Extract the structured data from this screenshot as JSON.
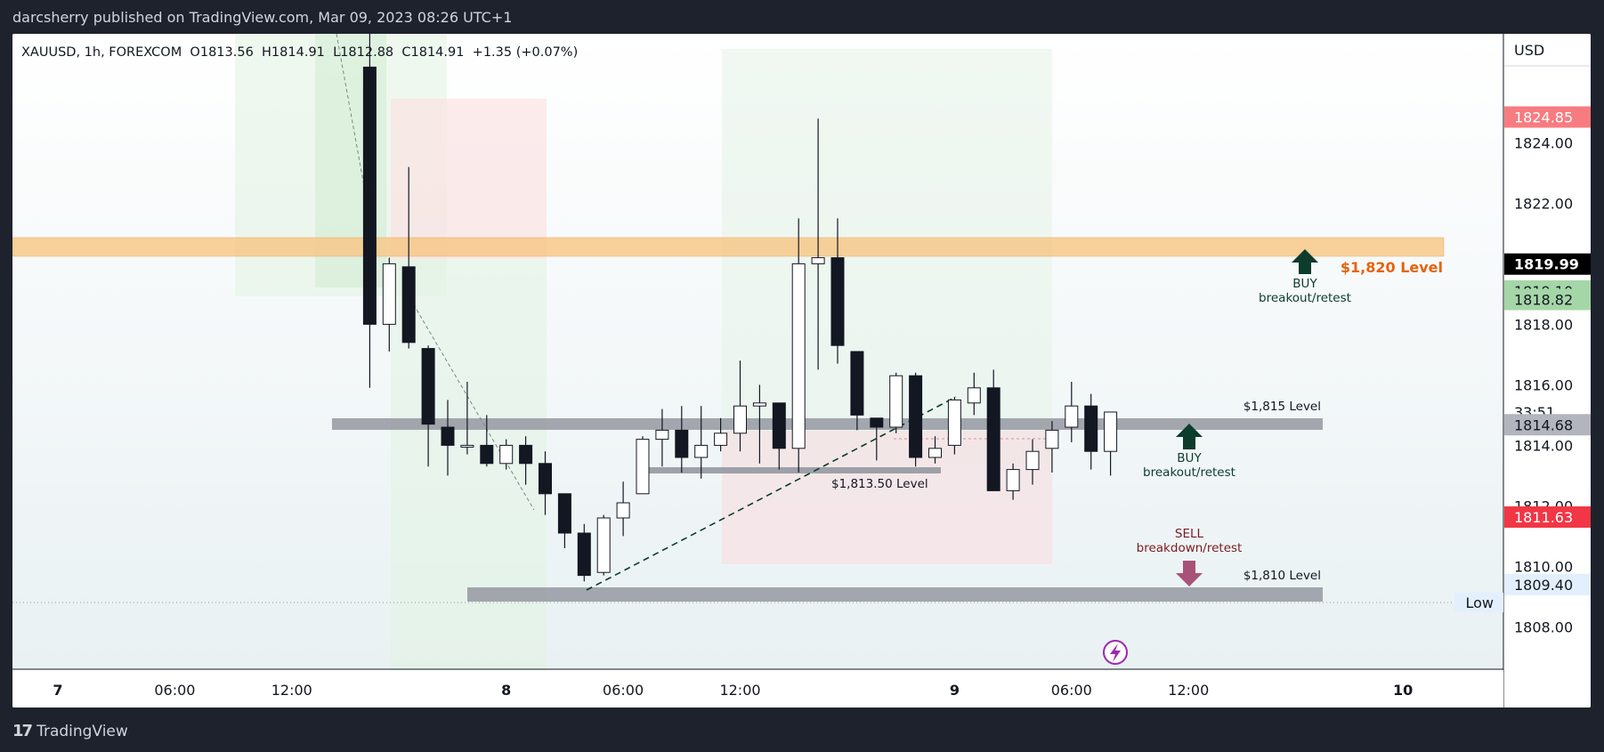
{
  "header": {
    "publisher_line": "darcsherry published on TradingView.com, Mar 09, 2023 08:26 UTC+1"
  },
  "symbol_bar": {
    "text": "XAUUSD, 1h, FOREXCOM  O1813.56  H1814.91  L1812.88  C1814.91  +1.35 (+0.07%)"
  },
  "price_axis": {
    "currency": "USD",
    "ticks": [
      "1824.00",
      "1822.00",
      "1820.00",
      "1818.00",
      "1816.00",
      "1814.00",
      "1812.00",
      "1810.00",
      "1808.00"
    ],
    "tick_values": [
      1824,
      1822,
      1820,
      1818,
      1816,
      1814,
      1812,
      1810,
      1808
    ],
    "badges": [
      {
        "value": 1824.85,
        "label": "1824.85",
        "bg": "#f77c80",
        "fg": "#ffffff"
      },
      {
        "value": 1819.99,
        "label": "1819.99",
        "bg": "#000000",
        "fg": "#ffffff"
      },
      {
        "value": 1819.1,
        "label": "1819.10",
        "bg": "#a5d6a7",
        "fg": "#131722"
      },
      {
        "value": 1818.82,
        "label": "1818.82",
        "bg": "#a5d6a7",
        "fg": "#131722"
      },
      {
        "value": 1815.1,
        "label": "33:51",
        "bg": "#ffffff",
        "fg": "#131722"
      },
      {
        "value": 1814.68,
        "label": "1814.68",
        "bg": "#b2b5be",
        "fg": "#131722"
      },
      {
        "value": 1811.63,
        "label": "1811.63",
        "bg": "#f23645",
        "fg": "#ffffff"
      },
      {
        "value": 1809.4,
        "label": "1809.40",
        "bg": "#e3effd",
        "fg": "#131722"
      }
    ],
    "low_label": "Low"
  },
  "time_axis": {
    "labels": [
      {
        "text": "7",
        "x": 0,
        "bold": true
      },
      {
        "text": "06:00",
        "x": 6,
        "bold": false
      },
      {
        "text": "12:00",
        "x": 12,
        "bold": false
      },
      {
        "text": "8",
        "x": 23,
        "bold": true
      },
      {
        "text": "06:00",
        "x": 29,
        "bold": false
      },
      {
        "text": "12:00",
        "x": 35,
        "bold": false
      },
      {
        "text": "9",
        "x": 46,
        "bold": true
      },
      {
        "text": "06:00",
        "x": 52,
        "bold": false
      },
      {
        "text": "12:00",
        "x": 58,
        "bold": false
      },
      {
        "text": "10",
        "x": 69,
        "bold": true
      }
    ]
  },
  "annotations": {
    "level_1820": "$1,820 Level",
    "level_1815": "$1,815 Level",
    "level_1813": "$1,813.50 Level",
    "level_1810": "$1,810 Level",
    "buy_top_1": "BUY",
    "buy_top_2": "breakout/retest",
    "buy_mid_1": "BUY",
    "buy_mid_2": "breakout/retest",
    "sell_1": "SELL",
    "sell_2": "breakdown/retest"
  },
  "footer": {
    "brand": "TradingView"
  },
  "colors": {
    "up_body": "#ffffff",
    "down_body": "#131722",
    "wick": "#131722",
    "orange_zone": "#f7c98a",
    "gray_level": "#9598a1",
    "green_arrow": "#0c3c2c",
    "sell_arrow": "#a8527a",
    "orange_text": "#e8620a"
  },
  "chart_data": {
    "type": "candlestick",
    "symbol": "XAUUSD",
    "interval": "1h",
    "ylim": [
      1806.6,
      1827.6
    ],
    "candles": [
      {
        "x": 16,
        "o": 1826.5,
        "h": 1830.0,
        "l": 1815.9,
        "c": 1818.0
      },
      {
        "x": 17,
        "o": 1818.0,
        "h": 1820.2,
        "l": 1817.1,
        "c": 1820.0
      },
      {
        "x": 18,
        "o": 1819.9,
        "h": 1823.2,
        "l": 1817.2,
        "c": 1817.4
      },
      {
        "x": 19,
        "o": 1817.2,
        "h": 1817.3,
        "l": 1813.3,
        "c": 1814.7
      },
      {
        "x": 20,
        "o": 1814.6,
        "h": 1815.5,
        "l": 1813.0,
        "c": 1814.0
      },
      {
        "x": 21,
        "o": 1814.0,
        "h": 1816.1,
        "l": 1813.7,
        "c": 1814.0
      },
      {
        "x": 22,
        "o": 1814.0,
        "h": 1815.0,
        "l": 1813.3,
        "c": 1813.4
      },
      {
        "x": 23,
        "o": 1813.4,
        "h": 1814.2,
        "l": 1813.2,
        "c": 1814.0
      },
      {
        "x": 24,
        "o": 1814.0,
        "h": 1814.3,
        "l": 1812.7,
        "c": 1813.4
      },
      {
        "x": 25,
        "o": 1813.4,
        "h": 1813.8,
        "l": 1811.7,
        "c": 1812.4
      },
      {
        "x": 26,
        "o": 1812.4,
        "h": 1812.4,
        "l": 1810.6,
        "c": 1811.1
      },
      {
        "x": 27,
        "o": 1811.1,
        "h": 1811.4,
        "l": 1809.5,
        "c": 1809.7
      },
      {
        "x": 28,
        "o": 1809.8,
        "h": 1811.7,
        "l": 1809.7,
        "c": 1811.6
      },
      {
        "x": 29,
        "o": 1811.6,
        "h": 1812.8,
        "l": 1811.0,
        "c": 1812.1
      },
      {
        "x": 30,
        "o": 1812.4,
        "h": 1814.3,
        "l": 1812.4,
        "c": 1814.2
      },
      {
        "x": 31,
        "o": 1814.2,
        "h": 1815.2,
        "l": 1813.3,
        "c": 1814.5
      },
      {
        "x": 32,
        "o": 1814.5,
        "h": 1815.3,
        "l": 1813.1,
        "c": 1813.6
      },
      {
        "x": 33,
        "o": 1813.6,
        "h": 1815.3,
        "l": 1812.9,
        "c": 1814.0
      },
      {
        "x": 34,
        "o": 1814.0,
        "h": 1814.9,
        "l": 1813.8,
        "c": 1814.4
      },
      {
        "x": 35,
        "o": 1814.4,
        "h": 1816.8,
        "l": 1813.8,
        "c": 1815.3
      },
      {
        "x": 36,
        "o": 1815.3,
        "h": 1816.0,
        "l": 1813.4,
        "c": 1815.4
      },
      {
        "x": 37,
        "o": 1815.4,
        "h": 1815.4,
        "l": 1813.2,
        "c": 1813.9
      },
      {
        "x": 38,
        "o": 1813.9,
        "h": 1821.5,
        "l": 1813.1,
        "c": 1820.0
      },
      {
        "x": 39,
        "o": 1820.0,
        "h": 1824.8,
        "l": 1816.5,
        "c": 1820.2
      },
      {
        "x": 40,
        "o": 1820.2,
        "h": 1821.5,
        "l": 1816.7,
        "c": 1817.3
      },
      {
        "x": 41,
        "o": 1817.1,
        "h": 1817.1,
        "l": 1814.5,
        "c": 1815.0
      },
      {
        "x": 42,
        "o": 1814.9,
        "h": 1814.9,
        "l": 1813.5,
        "c": 1814.6
      },
      {
        "x": 43,
        "o": 1814.6,
        "h": 1816.4,
        "l": 1814.4,
        "c": 1816.3
      },
      {
        "x": 44,
        "o": 1816.3,
        "h": 1816.4,
        "l": 1813.3,
        "c": 1813.6
      },
      {
        "x": 45,
        "o": 1813.6,
        "h": 1814.3,
        "l": 1813.4,
        "c": 1813.9
      },
      {
        "x": 46,
        "o": 1814.0,
        "h": 1815.6,
        "l": 1813.7,
        "c": 1815.5
      },
      {
        "x": 47,
        "o": 1815.4,
        "h": 1816.4,
        "l": 1815.0,
        "c": 1815.9
      },
      {
        "x": 48,
        "o": 1815.9,
        "h": 1816.5,
        "l": 1812.5,
        "c": 1812.5
      },
      {
        "x": 49,
        "o": 1812.5,
        "h": 1813.4,
        "l": 1812.2,
        "c": 1813.2
      },
      {
        "x": 50,
        "o": 1813.2,
        "h": 1814.2,
        "l": 1812.7,
        "c": 1813.8
      },
      {
        "x": 51,
        "o": 1813.9,
        "h": 1814.8,
        "l": 1813.1,
        "c": 1814.5
      },
      {
        "x": 52,
        "o": 1814.6,
        "h": 1816.1,
        "l": 1814.1,
        "c": 1815.3
      },
      {
        "x": 53,
        "o": 1815.3,
        "h": 1815.7,
        "l": 1813.2,
        "c": 1813.8
      },
      {
        "x": 54,
        "o": 1813.8,
        "h": 1815.1,
        "l": 1813.0,
        "c": 1815.1
      }
    ],
    "levels": [
      {
        "name": "$1,820 Level",
        "low": 1819.47,
        "high": 1820.07
      },
      {
        "name": "$1,815 Level",
        "low": 1814.82,
        "high": 1815.17
      },
      {
        "name": "$1,813.50 Level",
        "low": 1813.5,
        "high": 1813.7
      },
      {
        "name": "$1,810 Level",
        "low": 1809.37,
        "high": 1809.82
      }
    ]
  }
}
